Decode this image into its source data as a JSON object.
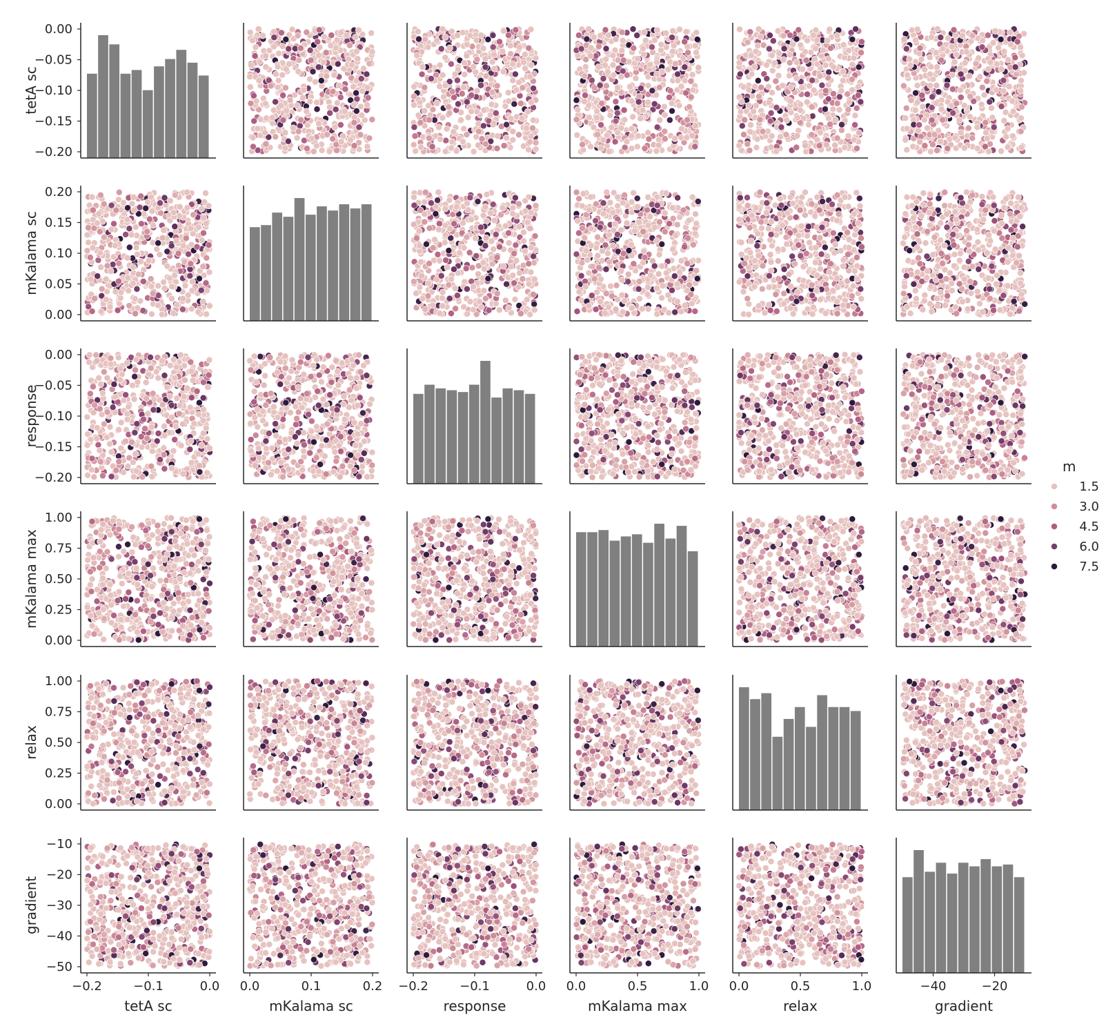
{
  "chart_data": {
    "type": "scatter",
    "subtype": "pairplot",
    "variables": [
      {
        "name": "tetA sc",
        "range": [
          -0.2,
          0.0
        ],
        "ticks": [
          -0.2,
          -0.15,
          -0.1,
          -0.05,
          0.0
        ],
        "y_tick_labels": [
          "−0.20",
          "−0.15",
          "−0.10",
          "−0.05",
          "0.00"
        ],
        "x_tick_labels": [
          "−0.2",
          "−0.1",
          "0.0"
        ],
        "x_ticks": [
          -0.2,
          -0.1,
          0.0
        ],
        "hist_counts": [
          46,
          67,
          62,
          46,
          48,
          37,
          50,
          54,
          59,
          52,
          45
        ]
      },
      {
        "name": "mKalama sc",
        "range": [
          0.0,
          0.2
        ],
        "ticks": [
          0.0,
          0.05,
          0.1,
          0.15,
          0.2
        ],
        "y_tick_labels": [
          "0.00",
          "0.05",
          "0.10",
          "0.15",
          "0.20"
        ],
        "x_tick_labels": [
          "0.0",
          "0.1",
          "0.2"
        ],
        "x_ticks": [
          0.0,
          0.1,
          0.2
        ],
        "hist_counts": [
          45,
          46,
          52,
          50,
          59,
          51,
          55,
          53,
          56,
          54,
          56
        ]
      },
      {
        "name": "response",
        "range": [
          -0.2,
          0.0
        ],
        "ticks": [
          -0.2,
          -0.15,
          -0.1,
          -0.05,
          0.0
        ],
        "y_tick_labels": [
          "−0.20",
          "−0.15",
          "−0.10",
          "−0.05",
          "0.00"
        ],
        "x_tick_labels": [
          "−0.2",
          "−0.1",
          "0.0"
        ],
        "x_ticks": [
          -0.2,
          -0.1,
          0.0
        ],
        "hist_counts": [
          49,
          54,
          52,
          51,
          50,
          54,
          67,
          47,
          52,
          51,
          49
        ]
      },
      {
        "name": "mKalama max",
        "range": [
          0.0,
          1.0
        ],
        "ticks": [
          0.0,
          0.25,
          0.5,
          0.75,
          1.0
        ],
        "y_tick_labels": [
          "0.00",
          "0.25",
          "0.50",
          "0.75",
          "1.00"
        ],
        "x_tick_labels": [
          "0.0",
          "0.5",
          "1.0"
        ],
        "x_ticks": [
          0.0,
          0.5,
          1.0
        ],
        "hist_counts": [
          54,
          54,
          55,
          50,
          52,
          53,
          49,
          58,
          51,
          57,
          45
        ]
      },
      {
        "name": "relax",
        "range": [
          0.0,
          1.0
        ],
        "ticks": [
          0.0,
          0.25,
          0.5,
          0.75,
          1.0
        ],
        "y_tick_labels": [
          "0.00",
          "0.25",
          "0.50",
          "0.75",
          "1.00"
        ],
        "x_tick_labels": [
          "0.0",
          "0.5",
          "1.0"
        ],
        "x_ticks": [
          0.0,
          0.5,
          1.0
        ],
        "hist_counts": [
          62,
          56,
          59,
          37,
          46,
          52,
          42,
          58,
          52,
          52,
          50
        ]
      },
      {
        "name": "gradient",
        "range": [
          -50,
          -10
        ],
        "ticks": [
          -50,
          -40,
          -30,
          -20,
          -10
        ],
        "y_tick_labels": [
          "−50",
          "−40",
          "−30",
          "−20",
          "−10"
        ],
        "x_tick_labels": [
          "−40",
          "−20"
        ],
        "x_ticks": [
          -40,
          -20
        ],
        "hist_counts": [
          53,
          68,
          56,
          61,
          55,
          61,
          59,
          63,
          59,
          60,
          53
        ]
      }
    ],
    "hue": {
      "name": "m",
      "legend_values": [
        "1.5",
        "3.0",
        "4.5",
        "6.0",
        "7.5"
      ],
      "legend_colors": [
        "#e6c3c0",
        "#d08e9a",
        "#ad5f83",
        "#773e6c",
        "#2c1a3d"
      ],
      "range": [
        0.5,
        8.0
      ]
    },
    "n_points": 600,
    "legend_placement": "right-center",
    "grid": false,
    "histogram_color": "#808080",
    "style": "seaborn pairplot, white background, despined axes"
  }
}
